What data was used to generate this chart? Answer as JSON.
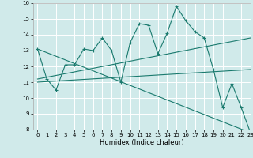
{
  "bg_color": "#d0eaea",
  "line_color": "#1a7a6e",
  "grid_color": "#ffffff",
  "xlabel": "Humidex (Indice chaleur)",
  "x_ticks": [
    0,
    1,
    2,
    3,
    4,
    5,
    6,
    7,
    8,
    9,
    10,
    11,
    12,
    13,
    14,
    15,
    16,
    17,
    18,
    19,
    20,
    21,
    22,
    23
  ],
  "ylim": [
    8,
    16
  ],
  "xlim": [
    -0.5,
    23
  ],
  "y_ticks": [
    8,
    9,
    10,
    11,
    12,
    13,
    14,
    15,
    16
  ],
  "lines": [
    {
      "x": [
        0,
        1,
        2,
        3,
        4,
        5,
        6,
        7,
        8,
        9,
        10,
        11,
        12,
        13,
        14,
        15,
        16,
        17,
        18,
        19,
        20,
        21,
        22,
        23
      ],
      "y": [
        13.1,
        11.2,
        10.5,
        12.1,
        12.1,
        13.1,
        13.0,
        13.8,
        13.0,
        11.0,
        13.5,
        14.7,
        14.6,
        12.8,
        14.1,
        15.8,
        14.9,
        14.2,
        13.8,
        11.8,
        9.4,
        10.9,
        9.4,
        7.8
      ]
    },
    {
      "x": [
        0,
        23
      ],
      "y": [
        11.2,
        13.8
      ]
    },
    {
      "x": [
        0,
        23
      ],
      "y": [
        11.0,
        11.8
      ]
    },
    {
      "x": [
        0,
        23
      ],
      "y": [
        13.1,
        7.8
      ]
    }
  ]
}
